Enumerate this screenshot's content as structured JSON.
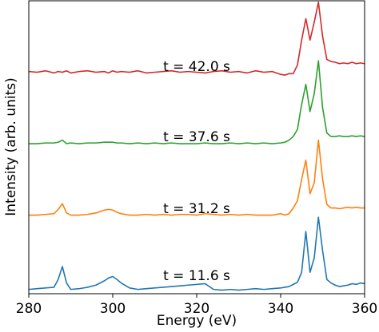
{
  "chart_data": {
    "type": "line",
    "xlabel": "Energy (eV)",
    "ylabel": "Intensity (arb. units)",
    "xlim": [
      280,
      360
    ],
    "xticks": [
      280,
      300,
      320,
      340,
      360
    ],
    "ylim": [
      0,
      4.1
    ],
    "x": [
      280,
      282,
      284,
      286,
      287,
      288,
      289,
      290,
      292,
      294,
      296,
      298,
      299,
      300,
      301,
      302,
      304,
      306,
      308,
      310,
      312,
      314,
      316,
      318,
      320,
      322,
      324,
      326,
      328,
      330,
      332,
      334,
      336,
      338,
      340,
      341,
      342,
      343,
      344,
      345,
      346,
      347,
      348,
      349,
      350,
      351,
      352,
      353,
      354,
      355,
      356,
      357,
      358,
      359,
      360
    ],
    "series": [
      {
        "name": "t = 11.6 s",
        "color": "#1f77b4",
        "values": [
          0.06,
          0.07,
          0.08,
          0.09,
          0.2,
          0.38,
          0.15,
          0.06,
          0.07,
          0.09,
          0.12,
          0.18,
          0.22,
          0.24,
          0.2,
          0.15,
          0.08,
          0.06,
          0.07,
          0.08,
          0.09,
          0.1,
          0.11,
          0.12,
          0.13,
          0.14,
          0.06,
          0.05,
          0.06,
          0.05,
          0.06,
          0.07,
          0.06,
          0.07,
          0.08,
          0.09,
          0.1,
          0.13,
          0.16,
          0.3,
          0.87,
          0.3,
          0.5,
          1.07,
          0.6,
          0.2,
          0.15,
          0.12,
          0.1,
          0.11,
          0.12,
          0.14,
          0.13,
          0.15,
          0.14
        ]
      },
      {
        "name": "t = 31.2 s",
        "color": "#ff7f0e",
        "values": [
          1.1,
          1.1,
          1.11,
          1.12,
          1.18,
          1.26,
          1.13,
          1.1,
          1.1,
          1.11,
          1.13,
          1.17,
          1.18,
          1.17,
          1.14,
          1.12,
          1.1,
          1.1,
          1.11,
          1.1,
          1.11,
          1.1,
          1.11,
          1.11,
          1.1,
          1.12,
          1.11,
          1.1,
          1.11,
          1.1,
          1.11,
          1.1,
          1.1,
          1.1,
          1.12,
          1.1,
          1.12,
          1.2,
          1.3,
          1.6,
          1.87,
          1.4,
          1.55,
          2.15,
          1.6,
          1.25,
          1.2,
          1.2,
          1.19,
          1.2,
          1.21,
          1.2,
          1.21,
          1.2,
          1.2
        ]
      },
      {
        "name": "t = 37.6 s",
        "color": "#2ca02c",
        "values": [
          2.1,
          2.1,
          2.11,
          2.11,
          2.12,
          2.15,
          2.1,
          2.11,
          2.1,
          2.11,
          2.11,
          2.12,
          2.12,
          2.12,
          2.11,
          2.11,
          2.1,
          2.11,
          2.1,
          2.11,
          2.1,
          2.11,
          2.1,
          2.1,
          2.1,
          2.11,
          2.1,
          2.1,
          2.11,
          2.1,
          2.11,
          2.1,
          2.11,
          2.1,
          2.11,
          2.12,
          2.15,
          2.2,
          2.3,
          2.65,
          2.93,
          2.55,
          2.8,
          3.26,
          2.6,
          2.25,
          2.2,
          2.2,
          2.21,
          2.2,
          2.2,
          2.21,
          2.2,
          2.21,
          2.2
        ]
      },
      {
        "name": "t = 42.0 s",
        "color": "#d62728",
        "values": [
          3.11,
          3.1,
          3.12,
          3.09,
          3.11,
          3.1,
          3.12,
          3.09,
          3.11,
          3.12,
          3.1,
          3.11,
          3.09,
          3.12,
          3.1,
          3.11,
          3.1,
          3.12,
          3.09,
          3.1,
          3.11,
          3.12,
          3.1,
          3.11,
          3.1,
          3.09,
          3.11,
          3.12,
          3.1,
          3.11,
          3.09,
          3.12,
          3.1,
          3.11,
          3.07,
          3.06,
          3.08,
          3.08,
          3.2,
          3.55,
          3.85,
          3.55,
          3.8,
          4.08,
          3.6,
          3.28,
          3.25,
          3.24,
          3.22,
          3.23,
          3.22,
          3.24,
          3.22,
          3.23,
          3.22
        ]
      }
    ]
  }
}
